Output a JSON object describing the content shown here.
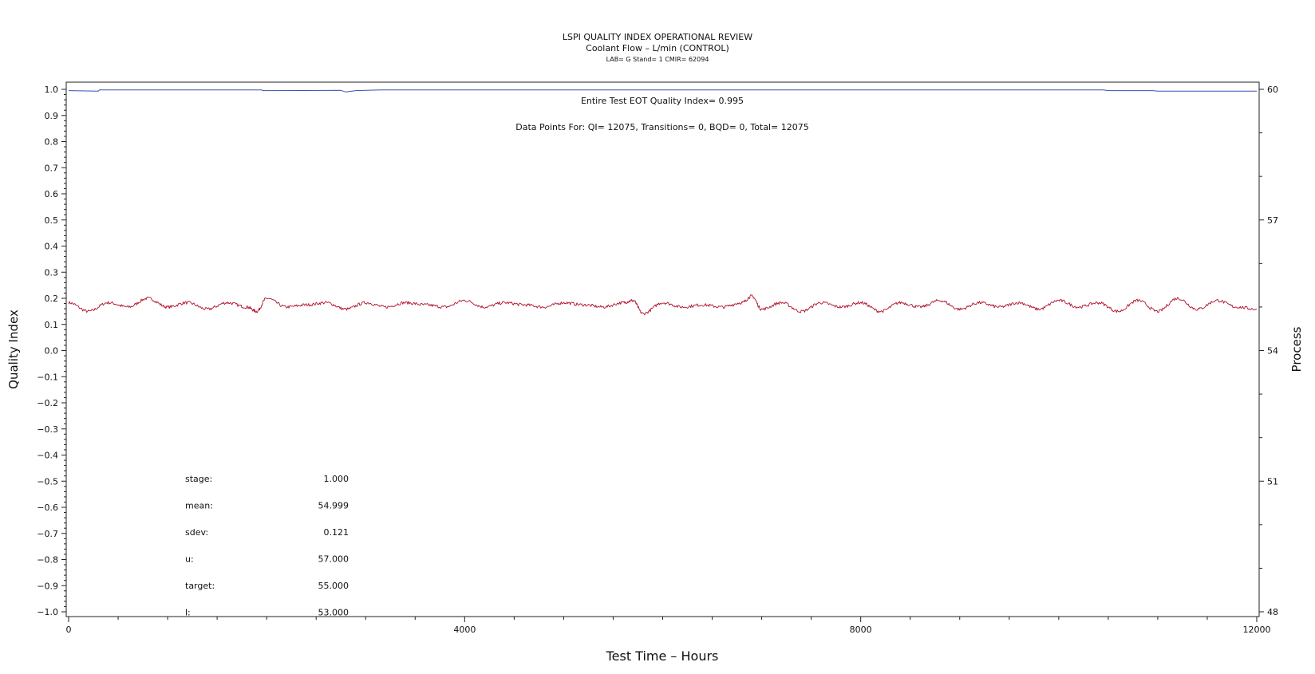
{
  "header": {
    "title": "LSPI QUALITY INDEX OPERATIONAL REVIEW",
    "subtitle": "Coolant Flow – L/min (CONTROL)",
    "subtitle2": "LAB= G Stand= 1 CMIR= 62094"
  },
  "annotations": {
    "eot": "Entire Test EOT Quality Index=   0.995",
    "datapoints": "Data Points For: QI= 12075, Transitions=     0, BQD=     0, Total= 12075"
  },
  "stats": [
    {
      "label": "stage:",
      "value": "1.000"
    },
    {
      "label": "mean:",
      "value": "54.999"
    },
    {
      "label": "sdev:",
      "value": "0.121"
    },
    {
      "label": "u:",
      "value": "57.000"
    },
    {
      "label": "target:",
      "value": "55.000"
    },
    {
      "label": "l:",
      "value": "53.000"
    }
  ],
  "colors": {
    "quality_index": "#3a4fb5",
    "process": "#b0122b",
    "axis": "#222222"
  },
  "chart_data": {
    "type": "line",
    "title": "LSPI QUALITY INDEX OPERATIONAL REVIEW",
    "subtitle": "Coolant Flow – L/min (CONTROL)",
    "xlabel": "Test Time – Hours",
    "ylabel_left": "Quality Index",
    "ylabel_right": "Process",
    "xlim": [
      0,
      12000
    ],
    "ylim_left": [
      -1.0,
      1.0
    ],
    "ylim_right": [
      48,
      60
    ],
    "x_ticks": [
      0,
      4000,
      8000,
      12000
    ],
    "y_left_ticks": [
      "1.0",
      "0.9",
      "0.8",
      "0.7",
      "0.6",
      "0.5",
      "0.4",
      "0.3",
      "0.2",
      "0.1",
      "0.0",
      "−0.1",
      "−0.2",
      "−0.3",
      "−0.4",
      "−0.5",
      "−0.6",
      "−0.7",
      "−0.8",
      "−0.9",
      "−1.0"
    ],
    "y_right_ticks": [
      "60",
      "57",
      "54",
      "51",
      "48"
    ],
    "grid": false,
    "legend": "none",
    "series": [
      {
        "axis": "left",
        "x": [
          0,
          300,
          310,
          1950,
          1960,
          2750,
          2800,
          2900,
          3150,
          10450,
          10500,
          10950,
          11000,
          12000
        ],
        "y": [
          0.995,
          0.993,
          0.998,
          0.998,
          0.995,
          0.996,
          0.99,
          0.995,
          0.998,
          0.998,
          0.995,
          0.995,
          0.993,
          0.993
        ]
      },
      {
        "axis": "right",
        "x": [
          0,
          200,
          400,
          600,
          800,
          1000,
          1200,
          1400,
          1600,
          1800,
          1900,
          2000,
          2200,
          2400,
          2600,
          2800,
          3000,
          3200,
          3400,
          3600,
          3800,
          4000,
          4200,
          4400,
          4600,
          4800,
          5000,
          5200,
          5400,
          5600,
          5700,
          5800,
          6000,
          6200,
          6400,
          6600,
          6800,
          6900,
          7000,
          7200,
          7400,
          7600,
          7800,
          8000,
          8200,
          8400,
          8600,
          8800,
          9000,
          9200,
          9400,
          9600,
          9800,
          10000,
          10200,
          10400,
          10600,
          10800,
          11000,
          11200,
          11400,
          11600,
          11800,
          12000
        ],
        "y": [
          55.1,
          54.9,
          55.1,
          55.0,
          55.2,
          55.0,
          55.1,
          54.95,
          55.1,
          55.0,
          54.9,
          55.2,
          55.0,
          55.05,
          55.1,
          54.95,
          55.1,
          55.0,
          55.1,
          55.05,
          55.0,
          55.15,
          55.0,
          55.1,
          55.05,
          55.0,
          55.1,
          55.05,
          55.0,
          55.1,
          55.15,
          54.85,
          55.1,
          55.0,
          55.05,
          55.0,
          55.1,
          55.25,
          54.95,
          55.1,
          54.9,
          55.1,
          55.0,
          55.1,
          54.9,
          55.1,
          55.0,
          55.15,
          54.95,
          55.1,
          55.0,
          55.1,
          54.95,
          55.15,
          55.0,
          55.1,
          54.9,
          55.15,
          54.9,
          55.2,
          54.95,
          55.15,
          55.0,
          54.95
        ]
      }
    ]
  }
}
